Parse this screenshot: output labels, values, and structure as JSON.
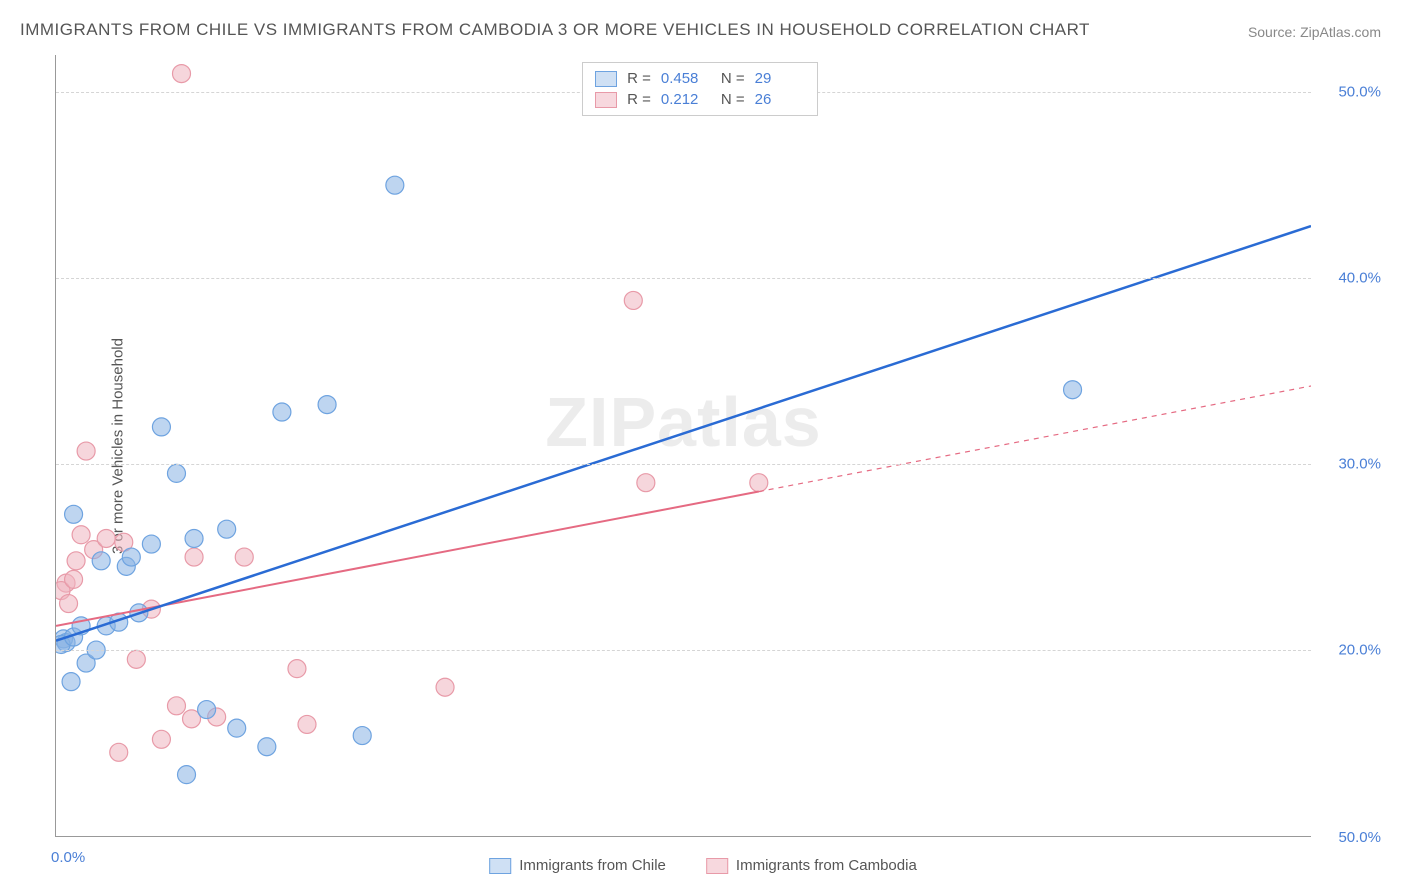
{
  "title": "IMMIGRANTS FROM CHILE VS IMMIGRANTS FROM CAMBODIA 3 OR MORE VEHICLES IN HOUSEHOLD CORRELATION CHART",
  "source": "Source: ZipAtlas.com",
  "y_axis_label": "3 or more Vehicles in Household",
  "watermark": "ZIPatlas",
  "x_range": [
    0,
    50
  ],
  "y_range": [
    10,
    52
  ],
  "x_ticks": [
    {
      "value": 0,
      "label": "0.0%"
    },
    {
      "value": 50,
      "label": "50.0%"
    }
  ],
  "y_ticks": [
    {
      "value": 20,
      "label": "20.0%"
    },
    {
      "value": 30,
      "label": "30.0%"
    },
    {
      "value": 40,
      "label": "40.0%"
    },
    {
      "value": 50,
      "label": "50.0%"
    }
  ],
  "grid_color": "#d5d5d5",
  "axis_color": "#999999",
  "background_color": "#ffffff",
  "tick_label_color": "#4a7fd6",
  "legend_top": {
    "rows": [
      {
        "swatch_fill": "#cfe0f4",
        "swatch_border": "#6ea3e0",
        "r_label": "R =",
        "r_value": "0.458",
        "n_label": "N =",
        "n_value": "29"
      },
      {
        "swatch_fill": "#f7d8de",
        "swatch_border": "#e89aa8",
        "r_label": "R =",
        "r_value": "0.212",
        "n_label": "N =",
        "n_value": "26"
      }
    ]
  },
  "legend_bottom": {
    "items": [
      {
        "swatch_fill": "#cfe0f4",
        "swatch_border": "#6ea3e0",
        "label": "Immigrants from Chile"
      },
      {
        "swatch_fill": "#f7d8de",
        "swatch_border": "#e89aa8",
        "label": "Immigrants from Cambodia"
      }
    ]
  },
  "series": [
    {
      "name": "chile",
      "fill": "rgba(136,178,227,0.55)",
      "stroke": "#6ea3e0",
      "line_color": "#2a6bd4",
      "line_width": 2.5,
      "marker_radius": 9,
      "trend": {
        "x1": 0,
        "y1": 20.5,
        "x2": 50,
        "y2": 42.8,
        "dashed_from_x": null
      },
      "points": [
        [
          0.3,
          20.6
        ],
        [
          0.4,
          20.4
        ],
        [
          0.2,
          20.3
        ],
        [
          0.7,
          20.7
        ],
        [
          0.6,
          18.3
        ],
        [
          1.2,
          19.3
        ],
        [
          1.0,
          21.3
        ],
        [
          1.6,
          20.0
        ],
        [
          2.0,
          21.3
        ],
        [
          2.5,
          21.5
        ],
        [
          0.7,
          27.3
        ],
        [
          1.8,
          24.8
        ],
        [
          2.8,
          24.5
        ],
        [
          3.0,
          25.0
        ],
        [
          3.8,
          25.7
        ],
        [
          3.3,
          22.0
        ],
        [
          4.8,
          29.5
        ],
        [
          5.5,
          26.0
        ],
        [
          4.2,
          32.0
        ],
        [
          6.8,
          26.5
        ],
        [
          9.0,
          32.8
        ],
        [
          10.8,
          33.2
        ],
        [
          13.5,
          45.0
        ],
        [
          8.4,
          14.8
        ],
        [
          7.2,
          15.8
        ],
        [
          5.2,
          13.3
        ],
        [
          6.0,
          16.8
        ],
        [
          12.2,
          15.4
        ],
        [
          40.5,
          34.0
        ]
      ]
    },
    {
      "name": "cambodia",
      "fill": "rgba(238,180,192,0.55)",
      "stroke": "#e89aa8",
      "line_color": "#e56a82",
      "line_width": 2,
      "marker_radius": 9,
      "trend": {
        "x1": 0,
        "y1": 21.3,
        "x2": 50,
        "y2": 34.2,
        "dashed_from_x": 28
      },
      "points": [
        [
          0.4,
          23.6
        ],
        [
          0.2,
          23.2
        ],
        [
          0.7,
          23.8
        ],
        [
          0.5,
          22.5
        ],
        [
          0.8,
          24.8
        ],
        [
          1.0,
          26.2
        ],
        [
          1.5,
          25.4
        ],
        [
          2.0,
          26.0
        ],
        [
          1.2,
          30.7
        ],
        [
          2.7,
          25.8
        ],
        [
          3.8,
          22.2
        ],
        [
          5.5,
          25.0
        ],
        [
          7.5,
          25.0
        ],
        [
          3.2,
          19.5
        ],
        [
          4.8,
          17.0
        ],
        [
          5.4,
          16.3
        ],
        [
          6.4,
          16.4
        ],
        [
          4.2,
          15.2
        ],
        [
          2.5,
          14.5
        ],
        [
          5.0,
          51.0
        ],
        [
          9.6,
          19.0
        ],
        [
          10.0,
          16.0
        ],
        [
          15.5,
          18.0
        ],
        [
          23.0,
          38.8
        ],
        [
          23.5,
          29.0
        ],
        [
          28.0,
          29.0
        ]
      ]
    }
  ]
}
